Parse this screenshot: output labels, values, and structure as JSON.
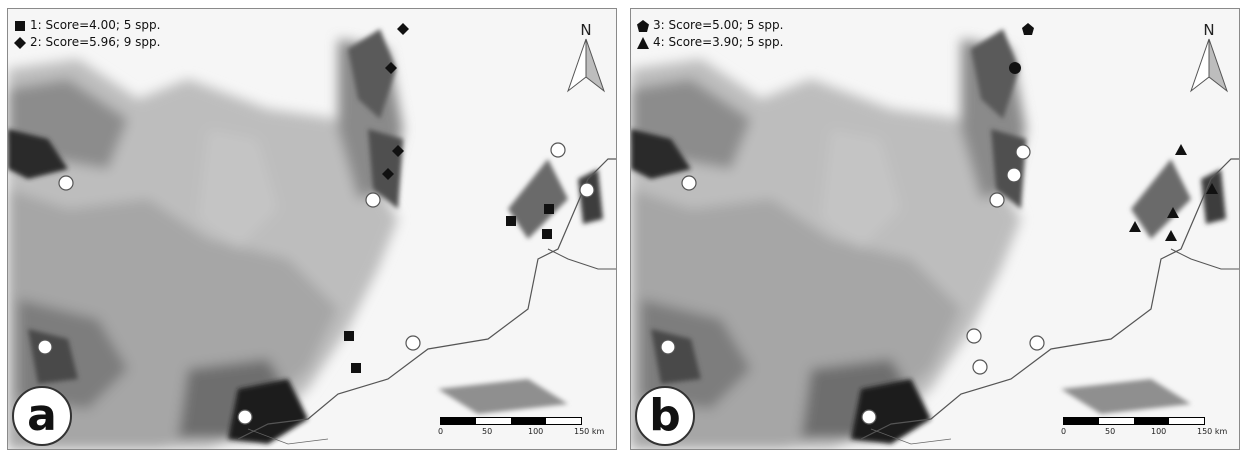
{
  "panels": [
    {
      "letter": "a",
      "legend": [
        {
          "symbol": "square",
          "label": "1: Score=4.00; 5 spp."
        },
        {
          "symbol": "diamond",
          "label": "2: Score=5.96; 9 spp."
        }
      ],
      "north_label": "N",
      "scale": {
        "ticks": [
          "0",
          "50",
          "100",
          "150 km"
        ]
      }
    },
    {
      "letter": "b",
      "legend": [
        {
          "symbol": "pentagon",
          "label": "3: Score=5.00; 5 spp."
        },
        {
          "symbol": "triangle",
          "label": "4: Score=3.90; 5 spp."
        }
      ],
      "north_label": "N",
      "scale": {
        "ticks": [
          "0",
          "50",
          "100",
          "150 km"
        ]
      }
    }
  ],
  "colors": {
    "marker_fill": "#111111",
    "open_circle_fill": "#ffffff",
    "terrain_dark": "#1a1a1a",
    "terrain_light": "#f2f2f2"
  }
}
